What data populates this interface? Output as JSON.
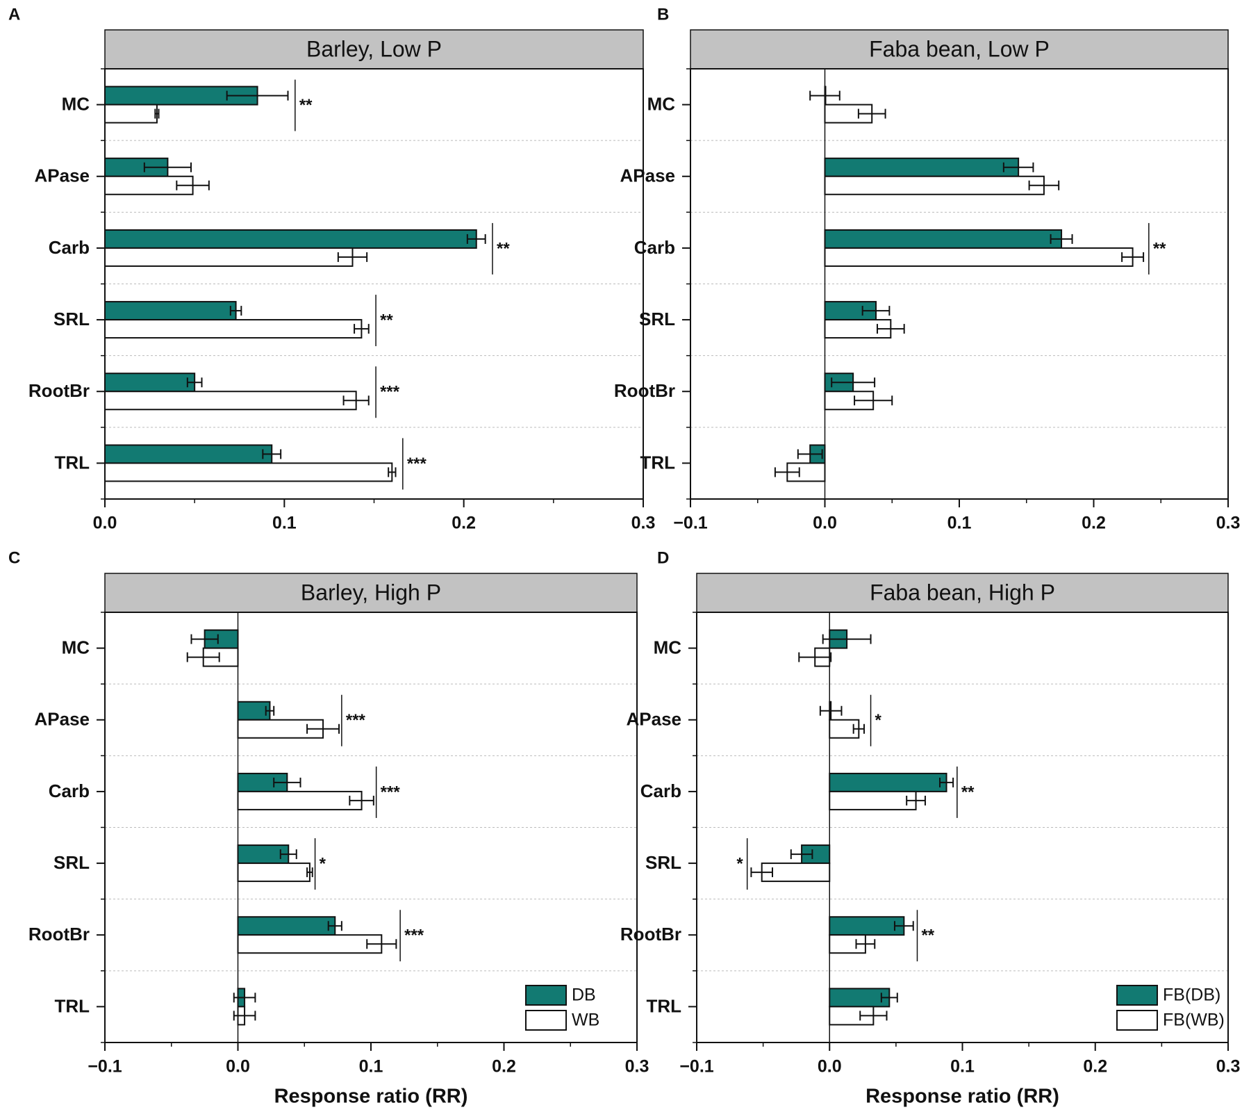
{
  "chart_data": [
    {
      "type": "bar",
      "orientation": "horizontal",
      "panel": "A",
      "title": "Barley, Low P",
      "xlabel": "",
      "categories": [
        "MC",
        "APase",
        "Carb",
        "SRL",
        "RootBr",
        "TRL"
      ],
      "xlim": [
        0.0,
        0.3
      ],
      "xticks": [
        0.0,
        0.1,
        0.2,
        0.3
      ],
      "xtick_labels": [
        "0.0",
        "0.1",
        "0.2",
        "0.3"
      ],
      "grid": "horizontal dotted separators",
      "legend": null,
      "series": [
        {
          "name": "DB",
          "values": [
            0.085,
            0.035,
            0.207,
            0.073,
            0.05,
            0.093
          ],
          "errors": [
            0.017,
            0.013,
            0.005,
            0.003,
            0.004,
            0.005
          ]
        },
        {
          "name": "WB",
          "values": [
            0.029,
            0.049,
            0.138,
            0.143,
            0.14,
            0.16
          ],
          "errors": [
            0.001,
            0.009,
            0.008,
            0.004,
            0.007,
            0.002
          ]
        }
      ],
      "significance": [
        {
          "category": "MC",
          "label": "**",
          "x": 0.106
        },
        {
          "category": "Carb",
          "label": "**",
          "x": 0.216
        },
        {
          "category": "SRL",
          "label": "**",
          "x": 0.151
        },
        {
          "category": "RootBr",
          "label": "***",
          "x": 0.151
        },
        {
          "category": "TRL",
          "label": "***",
          "x": 0.166
        }
      ]
    },
    {
      "type": "bar",
      "orientation": "horizontal",
      "panel": "B",
      "title": "Faba bean, Low P",
      "xlabel": "",
      "categories": [
        "MC",
        "APase",
        "Carb",
        "SRL",
        "RootBr",
        "TRL"
      ],
      "xlim": [
        -0.1,
        0.3
      ],
      "xticks": [
        -0.1,
        0.0,
        0.1,
        0.2,
        0.3
      ],
      "xtick_labels": [
        "−0.1",
        "0.0",
        "0.1",
        "0.2",
        "0.3"
      ],
      "grid": "horizontal dotted separators",
      "legend": null,
      "series": [
        {
          "name": "FB(DB)",
          "values": [
            0.0,
            0.144,
            0.176,
            0.038,
            0.021,
            -0.011
          ],
          "errors": [
            0.011,
            0.011,
            0.008,
            0.01,
            0.016,
            0.009
          ]
        },
        {
          "name": "FB(WB)",
          "values": [
            0.035,
            0.163,
            0.229,
            0.049,
            0.036,
            -0.028
          ],
          "errors": [
            0.01,
            0.011,
            0.008,
            0.01,
            0.014,
            0.009
          ]
        }
      ],
      "significance": [
        {
          "category": "Carb",
          "label": "**",
          "x": 0.241
        }
      ]
    },
    {
      "type": "bar",
      "orientation": "horizontal",
      "panel": "C",
      "title": "Barley, High P",
      "xlabel": "Response ratio (RR)",
      "categories": [
        "MC",
        "APase",
        "Carb",
        "SRL",
        "RootBr",
        "TRL"
      ],
      "xlim": [
        -0.1,
        0.3
      ],
      "xticks": [
        -0.1,
        0.0,
        0.1,
        0.2,
        0.3
      ],
      "xtick_labels": [
        "−0.1",
        "0.0",
        "0.1",
        "0.2",
        "0.3"
      ],
      "grid": "horizontal dotted separators",
      "legend": "bottom-right",
      "series": [
        {
          "name": "DB",
          "values": [
            -0.025,
            0.024,
            0.037,
            0.038,
            0.073,
            0.005
          ],
          "errors": [
            0.01,
            0.003,
            0.01,
            0.006,
            0.005,
            0.008
          ]
        },
        {
          "name": "WB",
          "values": [
            -0.026,
            0.064,
            0.093,
            0.054,
            0.108,
            0.005
          ],
          "errors": [
            0.012,
            0.012,
            0.009,
            0.002,
            0.011,
            0.008
          ]
        }
      ],
      "significance": [
        {
          "category": "APase",
          "label": "***",
          "x": 0.078
        },
        {
          "category": "Carb",
          "label": "***",
          "x": 0.104
        },
        {
          "category": "SRL",
          "label": "*",
          "x": 0.058
        },
        {
          "category": "RootBr",
          "label": "***",
          "x": 0.122
        }
      ]
    },
    {
      "type": "bar",
      "orientation": "horizontal",
      "panel": "D",
      "title": "Faba bean, High P",
      "xlabel": "Response ratio (RR)",
      "categories": [
        "MC",
        "APase",
        "Carb",
        "SRL",
        "RootBr",
        "TRL"
      ],
      "xlim": [
        -0.1,
        0.3
      ],
      "xticks": [
        -0.1,
        0.0,
        0.1,
        0.2,
        0.3
      ],
      "xtick_labels": [
        "−0.1",
        "0.0",
        "0.1",
        "0.2",
        "0.3"
      ],
      "grid": "horizontal dotted separators",
      "legend": "bottom-right",
      "series": [
        {
          "name": "FB(DB)",
          "values": [
            0.013,
            0.001,
            0.088,
            -0.021,
            0.056,
            0.045
          ],
          "errors": [
            0.018,
            0.008,
            0.005,
            0.008,
            0.007,
            0.006
          ]
        },
        {
          "name": "FB(WB)",
          "values": [
            -0.011,
            0.022,
            0.065,
            -0.051,
            0.027,
            0.033
          ],
          "errors": [
            0.012,
            0.004,
            0.007,
            0.008,
            0.007,
            0.01
          ]
        }
      ],
      "significance": [
        {
          "category": "APase",
          "label": "*",
          "x": 0.031
        },
        {
          "category": "Carb",
          "label": "**",
          "x": 0.096
        },
        {
          "category": "SRL",
          "label": "*",
          "x": -0.062
        },
        {
          "category": "RootBr",
          "label": "**",
          "x": 0.066
        }
      ]
    }
  ],
  "colors": {
    "series1_fill": "#127a72",
    "series2_fill": "#ffffff",
    "strip_fill": "#c2c2c2",
    "axis": "#111111",
    "grid": "#bbbbbb"
  }
}
